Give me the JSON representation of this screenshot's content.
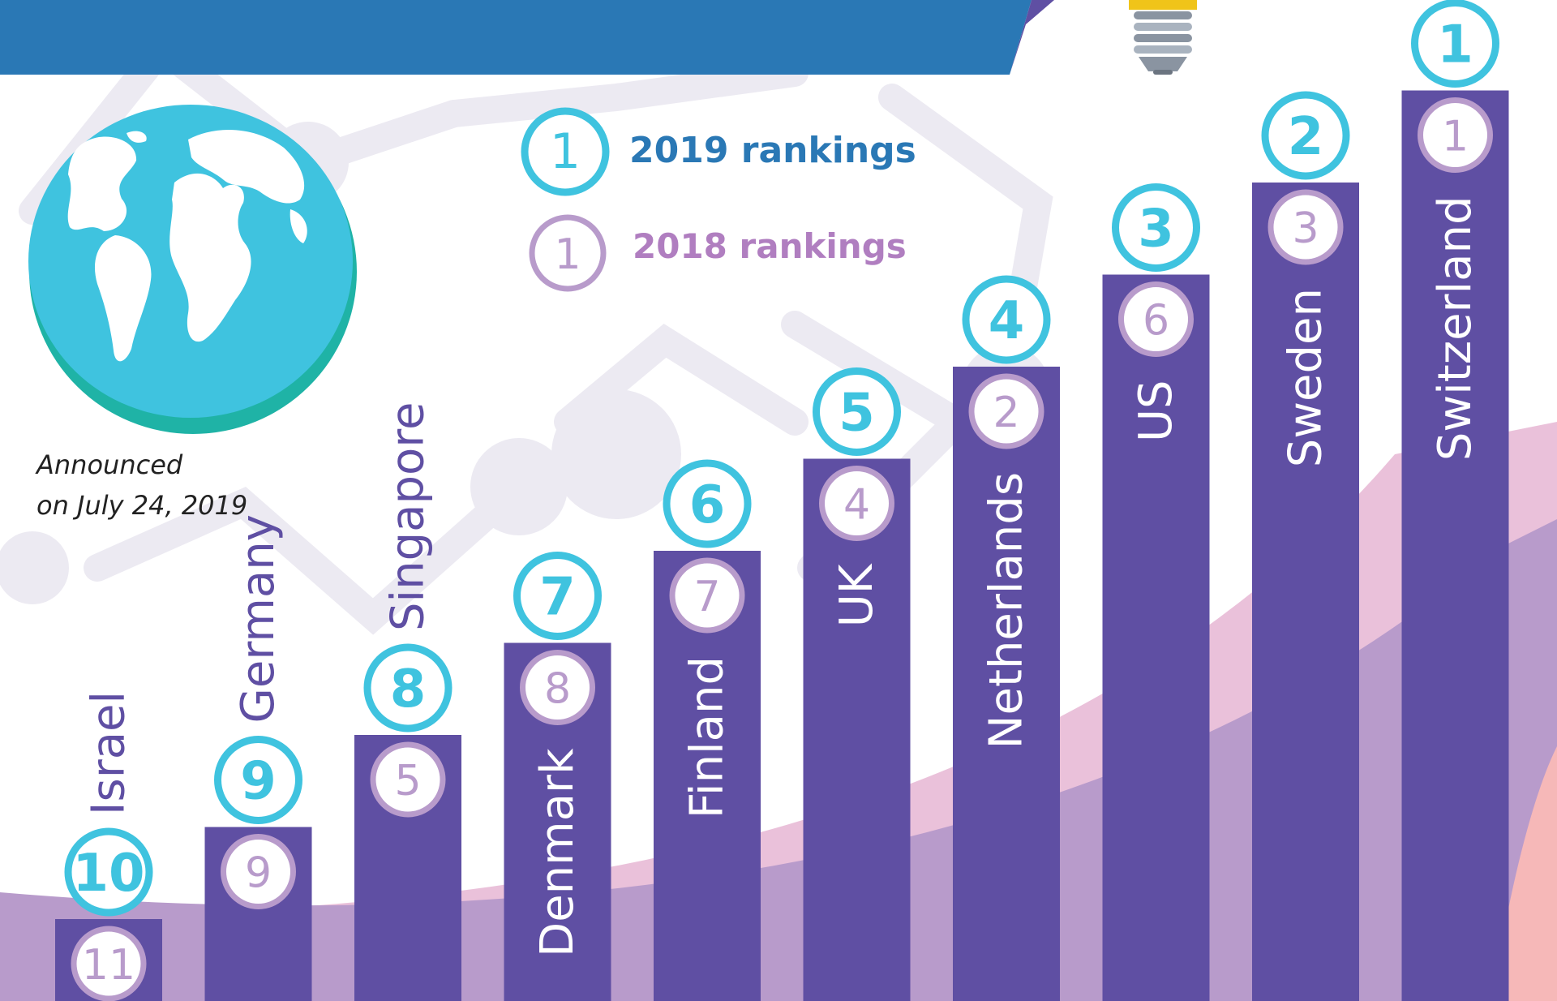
{
  "legend": {
    "marker_2019": "1",
    "label_2019": "2019 rankings",
    "marker_2018": "1",
    "label_2018": "2018 rankings"
  },
  "note_line1": "Announced",
  "note_line2": "on July 24, 2019",
  "colors": {
    "header_blue": "#2a78b5",
    "bar_purple": "#5f4fa3",
    "ring_2019": "#3fc3df",
    "ring_2018": "#b89bcb",
    "globe_ocean": "#3fc3df",
    "wave_purple": "#b89bcb",
    "wave_pink": "#e6b6d4"
  },
  "icons": [
    "globe-icon",
    "lightbulb-icon"
  ],
  "chart_data": {
    "type": "bar",
    "categories": [
      "Israel",
      "Germany",
      "Singapore",
      "Denmark",
      "Finland",
      "UK",
      "Netherlands",
      "US",
      "Sweden",
      "Switzerland"
    ],
    "series": [
      {
        "name": "2019 rankings",
        "values": [
          10,
          9,
          8,
          7,
          6,
          5,
          4,
          3,
          2,
          1
        ]
      },
      {
        "name": "2018 rankings",
        "values": [
          11,
          9,
          5,
          8,
          7,
          4,
          2,
          6,
          3,
          1
        ]
      }
    ],
    "title": "",
    "xlabel": "",
    "ylabel": ""
  }
}
